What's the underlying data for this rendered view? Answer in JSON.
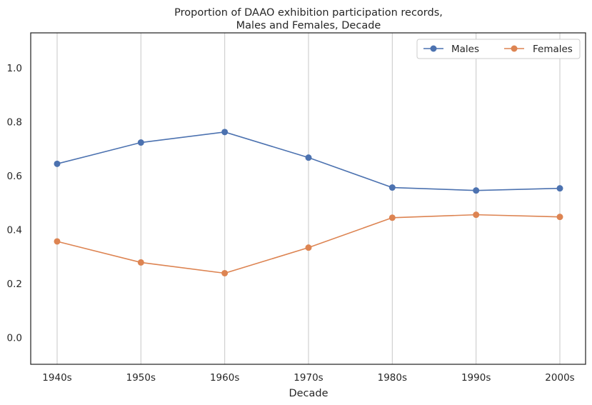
{
  "chart_data": {
    "type": "line",
    "title_lines": [
      "Proportion of DAAO exhibition participation records,",
      "Males and Females, Decade"
    ],
    "xlabel": "Decade",
    "ylabel": "",
    "categories": [
      "1940s",
      "1950s",
      "1960s",
      "1970s",
      "1980s",
      "1990s",
      "2000s"
    ],
    "yticks": [
      "0.0",
      "0.2",
      "0.4",
      "0.6",
      "0.8",
      "1.0"
    ],
    "ylim": [
      -0.1,
      1.13
    ],
    "grid": "vertical",
    "legend_position": "top-right",
    "series": [
      {
        "name": "Males",
        "color": "#4c72b0",
        "marker": "circle",
        "values": [
          0.644,
          0.723,
          0.762,
          0.667,
          0.556,
          0.545,
          0.553
        ]
      },
      {
        "name": "Females",
        "color": "#dd8452",
        "marker": "circle",
        "values": [
          0.356,
          0.278,
          0.238,
          0.333,
          0.444,
          0.455,
          0.447
        ]
      }
    ]
  }
}
